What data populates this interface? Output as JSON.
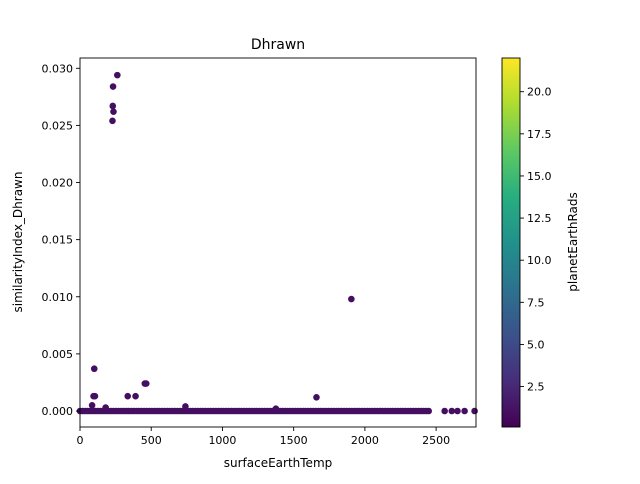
{
  "chart_data": {
    "type": "scatter",
    "title": "Dhrawn",
    "xlabel": "surfaceEarthTemp",
    "ylabel": "similarityIndex_Dhrawn",
    "xlim": [
      0,
      2780
    ],
    "ylim": [
      -0.0014,
      0.0309
    ],
    "xticks": [
      0,
      500,
      1000,
      1500,
      2000,
      2500
    ],
    "xtick_labels": [
      "0",
      "500",
      "1000",
      "1500",
      "2000",
      "2500"
    ],
    "yticks": [
      0.0,
      0.005,
      0.01,
      0.015,
      0.02,
      0.025,
      0.03
    ],
    "ytick_labels": [
      "0.000",
      "0.005",
      "0.010",
      "0.015",
      "0.020",
      "0.025",
      "0.030"
    ],
    "grid": false,
    "colorbar": {
      "label": "planetEarthRads",
      "colormap": "viridis",
      "range": [
        0.1,
        22.0
      ],
      "ticks": [
        2.5,
        5.0,
        7.5,
        10.0,
        12.5,
        15.0,
        17.5,
        20.0
      ],
      "tick_labels": [
        "2.5",
        "5.0",
        "7.5",
        "10.0",
        "12.5",
        "15.0",
        "17.5",
        "20.0"
      ]
    },
    "points": [
      {
        "x": 262,
        "y": 0.0294,
        "c": 1.0
      },
      {
        "x": 232,
        "y": 0.0284,
        "c": 1.0
      },
      {
        "x": 230,
        "y": 0.0267,
        "c": 1.0
      },
      {
        "x": 235,
        "y": 0.0262,
        "c": 1.0
      },
      {
        "x": 228,
        "y": 0.0254,
        "c": 1.0
      },
      {
        "x": 1905,
        "y": 0.0098,
        "c": 1.0
      },
      {
        "x": 100,
        "y": 0.0037,
        "c": 1.0
      },
      {
        "x": 455,
        "y": 0.0024,
        "c": 1.0
      },
      {
        "x": 465,
        "y": 0.0024,
        "c": 1.0
      },
      {
        "x": 95,
        "y": 0.0013,
        "c": 1.0
      },
      {
        "x": 105,
        "y": 0.0013,
        "c": 1.0
      },
      {
        "x": 335,
        "y": 0.0013,
        "c": 1.0
      },
      {
        "x": 390,
        "y": 0.0013,
        "c": 1.0
      },
      {
        "x": 1660,
        "y": 0.0012,
        "c": 1.0
      },
      {
        "x": 740,
        "y": 0.0004,
        "c": 1.0
      },
      {
        "x": 1375,
        "y": 0.0002,
        "c": 1.0
      },
      {
        "x": 85,
        "y": 0.0005,
        "c": 1.0
      },
      {
        "x": 180,
        "y": 0.0003,
        "c": 1.0
      },
      {
        "x": 2770,
        "y": 0.0,
        "c": 1.0
      },
      {
        "x": 2700,
        "y": 0.0,
        "c": 1.0
      },
      {
        "x": 2650,
        "y": 0.0,
        "c": 1.0
      },
      {
        "x": 2610,
        "y": 0.0,
        "c": 1.0
      },
      {
        "x": 2560,
        "y": 0.0,
        "c": 1.0
      }
    ],
    "dense_band": {
      "x_from": 0,
      "x_to": 2450,
      "step": 18,
      "y": 0.0,
      "c": 1.0
    }
  }
}
